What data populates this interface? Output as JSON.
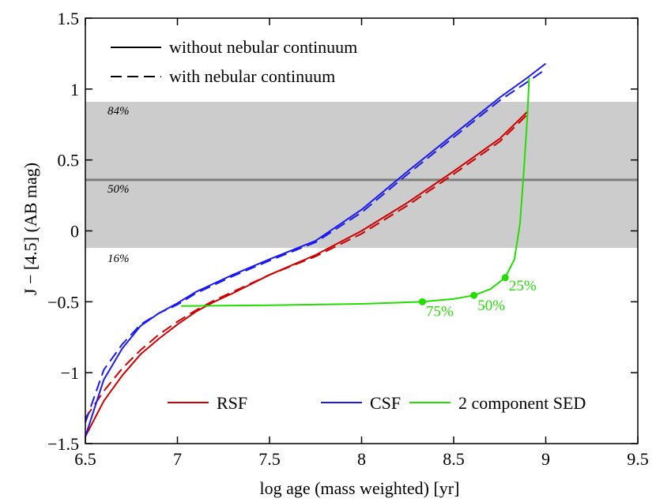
{
  "chart_data": {
    "type": "line",
    "xlabel": "log age (mass weighted) [yr]",
    "ylabel": "J − [4.5] (AB mag)",
    "xlim": [
      6.5,
      9.5
    ],
    "ylim": [
      -1.5,
      1.5
    ],
    "xticks": [
      6.5,
      7,
      7.5,
      8,
      8.5,
      9,
      9.5
    ],
    "xtick_labels": [
      "6.5",
      "7",
      "7.5",
      "8",
      "8.5",
      "9",
      "9.5"
    ],
    "yticks": [
      -1.5,
      -1,
      -0.5,
      0,
      0.5,
      1,
      1.5
    ],
    "ytick_labels": [
      "−1.5",
      "−1",
      "−0.5",
      "0",
      "0.5",
      "1",
      "1.5"
    ],
    "band": {
      "low": -0.12,
      "high": 0.91,
      "median": 0.36,
      "color": "#cccccc",
      "median_color": "#7f7f7f"
    },
    "percentile_labels": [
      {
        "text": "84%",
        "x": 6.62,
        "y": 0.82
      },
      {
        "text": "50%",
        "x": 6.62,
        "y": 0.27
      },
      {
        "text": "16%",
        "x": 6.62,
        "y": -0.22
      }
    ],
    "style_legend": [
      {
        "label": "without nebular continuum",
        "dash": "solid"
      },
      {
        "label": "with nebular continuum",
        "dash": "dashed"
      }
    ],
    "series_legend": [
      {
        "label": "RSF",
        "color": "#cc0000"
      },
      {
        "label": "CSF",
        "color": "#1a1aee"
      },
      {
        "label": "2 component SED",
        "color": "#22dd00"
      }
    ],
    "series": [
      {
        "name": "RSF without nebular continuum",
        "color": "#cc0000",
        "dash": "solid",
        "x": [
          6.5,
          6.6,
          6.7,
          6.8,
          6.9,
          7.0,
          7.1,
          7.2,
          7.3,
          7.5,
          7.75,
          8.0,
          8.25,
          8.5,
          8.75,
          8.9
        ],
        "y": [
          -1.45,
          -1.2,
          -1.02,
          -0.87,
          -0.76,
          -0.66,
          -0.57,
          -0.5,
          -0.44,
          -0.31,
          -0.17,
          0.0,
          0.2,
          0.42,
          0.65,
          0.84
        ]
      },
      {
        "name": "RSF with nebular continuum",
        "color": "#cc0000",
        "dash": "dashed",
        "x": [
          6.5,
          6.6,
          6.7,
          6.8,
          6.9,
          7.0,
          7.1,
          7.2,
          7.3,
          7.5,
          7.75,
          8.0,
          8.25,
          8.5,
          8.75,
          8.9
        ],
        "y": [
          -1.32,
          -1.13,
          -0.97,
          -0.84,
          -0.73,
          -0.64,
          -0.56,
          -0.49,
          -0.43,
          -0.31,
          -0.18,
          -0.02,
          0.18,
          0.4,
          0.63,
          0.82
        ]
      },
      {
        "name": "CSF without nebular continuum",
        "color": "#1a1aee",
        "dash": "solid",
        "x": [
          6.5,
          6.6,
          6.7,
          6.8,
          6.9,
          7.0,
          7.1,
          7.2,
          7.3,
          7.5,
          7.75,
          8.0,
          8.25,
          8.5,
          8.75,
          8.9,
          9.0
        ],
        "y": [
          -1.45,
          -1.05,
          -0.83,
          -0.67,
          -0.58,
          -0.51,
          -0.43,
          -0.37,
          -0.31,
          -0.2,
          -0.07,
          0.15,
          0.42,
          0.68,
          0.94,
          1.08,
          1.18
        ]
      },
      {
        "name": "CSF with nebular continuum",
        "color": "#1a1aee",
        "dash": "dashed",
        "x": [
          6.5,
          6.6,
          6.7,
          6.8,
          6.9,
          7.0,
          7.1,
          7.2,
          7.3,
          7.5,
          7.75,
          8.0,
          8.25,
          8.5,
          8.75,
          8.9,
          9.0
        ],
        "y": [
          -1.35,
          -0.98,
          -0.8,
          -0.66,
          -0.58,
          -0.52,
          -0.44,
          -0.38,
          -0.32,
          -0.21,
          -0.08,
          0.13,
          0.4,
          0.66,
          0.92,
          1.05,
          1.14
        ]
      },
      {
        "name": "2 component SED",
        "color": "#22dd00",
        "dash": "solid",
        "x": [
          7.02,
          7.5,
          8.0,
          8.33,
          8.5,
          8.61,
          8.7,
          8.78,
          8.83,
          8.86,
          8.88,
          8.9,
          8.91
        ],
        "y": [
          -0.53,
          -0.525,
          -0.515,
          -0.5,
          -0.48,
          -0.455,
          -0.41,
          -0.33,
          -0.2,
          0.05,
          0.4,
          0.8,
          1.08
        ]
      }
    ],
    "markers": [
      {
        "label": "75%",
        "x": 8.33,
        "y": -0.5,
        "lx": 8.35,
        "ly": -0.6
      },
      {
        "label": "50%",
        "x": 8.61,
        "y": -0.455,
        "lx": 8.63,
        "ly": -0.56
      },
      {
        "label": "25%",
        "x": 8.78,
        "y": -0.33,
        "lx": 8.8,
        "ly": -0.42
      }
    ]
  }
}
